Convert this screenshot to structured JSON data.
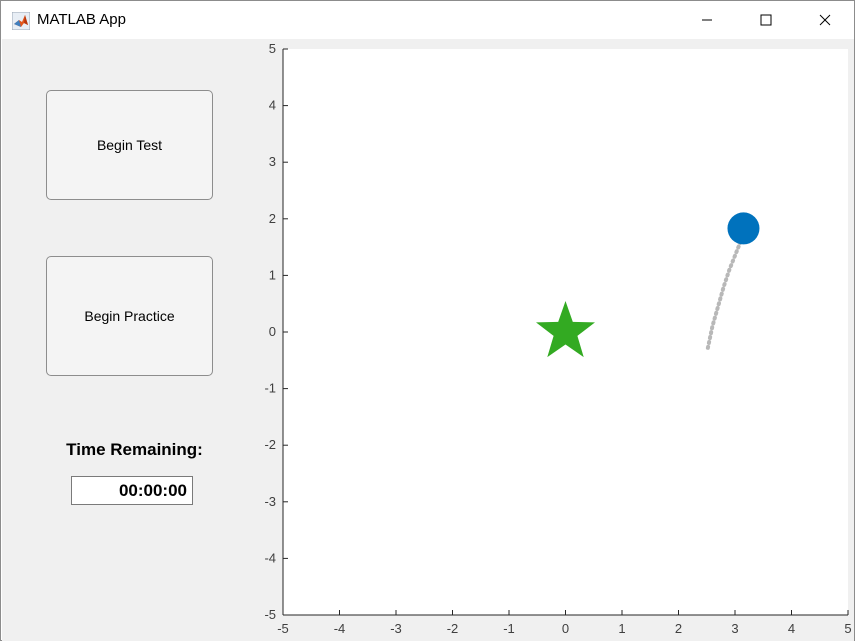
{
  "window": {
    "title": "MATLAB App",
    "icon": "matlab-logo-icon"
  },
  "controls": {
    "begin_test_label": "Begin Test",
    "begin_practice_label": "Begin Practice",
    "time_label": "Time Remaining:",
    "time_value": "00:00:00"
  },
  "chart_data": {
    "type": "scatter",
    "xlim": [
      -5,
      5
    ],
    "ylim": [
      -5,
      5
    ],
    "xticks": [
      -5,
      -4,
      -3,
      -2,
      -1,
      0,
      1,
      2,
      3,
      4,
      5
    ],
    "yticks": [
      -5,
      -4,
      -3,
      -2,
      -1,
      0,
      1,
      2,
      3,
      4,
      5
    ],
    "grid": false,
    "target": {
      "marker": "star",
      "x": 0,
      "y": 0,
      "color": "#33aa22"
    },
    "cursor": {
      "marker": "circle",
      "x": 3.15,
      "y": 1.83,
      "color": "#0072bd"
    },
    "trail": {
      "style": "dotted",
      "color": "#b8b8b8",
      "x": [
        2.52,
        2.6,
        2.7,
        2.8,
        2.9,
        3.0,
        3.1
      ],
      "y": [
        -0.28,
        0.1,
        0.45,
        0.8,
        1.1,
        1.35,
        1.6
      ]
    }
  }
}
